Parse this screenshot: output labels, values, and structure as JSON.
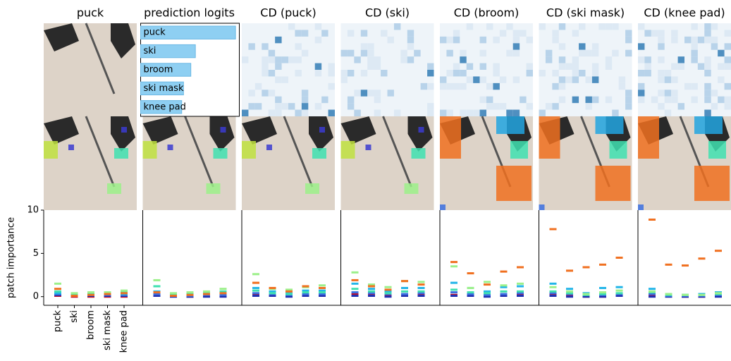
{
  "chart_data": [
    {
      "type": "strip",
      "title": "puck",
      "categories": [
        "puck",
        "ski",
        "broom",
        "ski mask",
        "knee pad"
      ],
      "ylabel": "patch importance",
      "ylim": [
        -1,
        10
      ],
      "yticks": [
        0,
        5,
        10
      ],
      "series": [
        {
          "color": "#c0102a",
          "values": [
            0.1,
            0.0,
            0.0,
            0.0,
            0.0
          ]
        },
        {
          "color": "#1f2fb0",
          "values": [
            0.2,
            0.1,
            0.1,
            0.1,
            0.1
          ]
        },
        {
          "color": "#3b6fe0",
          "values": [
            0.3,
            0.1,
            0.2,
            0.2,
            0.2
          ]
        },
        {
          "color": "#22b5e8",
          "values": [
            0.4,
            0.2,
            0.3,
            0.3,
            0.3
          ]
        },
        {
          "color": "#3fe0b0",
          "values": [
            0.6,
            0.3,
            0.4,
            0.4,
            0.5
          ]
        },
        {
          "color": "#9cf08a",
          "values": [
            1.5,
            0.4,
            0.5,
            0.5,
            0.7
          ]
        },
        {
          "color": "#f07020",
          "values": [
            0.9,
            0.1,
            0.2,
            0.3,
            0.4
          ]
        }
      ]
    },
    {
      "type": "strip",
      "title": "prediction logits",
      "series": [
        {
          "color": "#c0102a",
          "values": [
            0.2,
            0.1,
            0.0,
            0.1,
            0.1
          ]
        },
        {
          "color": "#1f2fb0",
          "values": [
            0.1,
            0.0,
            0.0,
            0.0,
            0.0
          ]
        },
        {
          "color": "#3b6fe0",
          "values": [
            0.3,
            0.1,
            0.1,
            0.2,
            0.2
          ]
        },
        {
          "color": "#22b5e8",
          "values": [
            0.6,
            0.2,
            0.3,
            0.3,
            0.4
          ]
        },
        {
          "color": "#3fe0b0",
          "values": [
            1.2,
            0.3,
            0.4,
            0.5,
            0.6
          ]
        },
        {
          "color": "#9cf08a",
          "values": [
            1.9,
            0.4,
            0.5,
            0.6,
            0.9
          ]
        },
        {
          "color": "#f07020",
          "values": [
            0.5,
            0.1,
            0.2,
            0.3,
            0.4
          ]
        }
      ]
    },
    {
      "type": "strip",
      "title": "CD (puck)",
      "series": [
        {
          "color": "#c0102a",
          "values": [
            0.2,
            0.1,
            0.1,
            0.1,
            0.1
          ]
        },
        {
          "color": "#1f2fb0",
          "values": [
            0.1,
            0.1,
            0.0,
            0.1,
            0.1
          ]
        },
        {
          "color": "#3b6fe0",
          "values": [
            0.4,
            0.3,
            0.2,
            0.3,
            0.3
          ]
        },
        {
          "color": "#22b5e8",
          "values": [
            1.0,
            0.6,
            0.5,
            0.7,
            0.7
          ]
        },
        {
          "color": "#3fe0b0",
          "values": [
            0.7,
            0.4,
            0.3,
            0.5,
            0.5
          ]
        },
        {
          "color": "#9cf08a",
          "values": [
            2.6,
            0.9,
            0.8,
            1.1,
            1.3
          ]
        },
        {
          "color": "#f07020",
          "values": [
            1.6,
            1.0,
            0.6,
            1.2,
            1.0
          ]
        }
      ]
    },
    {
      "type": "strip",
      "title": "CD (ski)",
      "series": [
        {
          "color": "#c0102a",
          "values": [
            0.3,
            0.2,
            0.1,
            0.1,
            0.2
          ]
        },
        {
          "color": "#1f2fb0",
          "values": [
            0.1,
            0.1,
            0.0,
            0.1,
            0.1
          ]
        },
        {
          "color": "#3b6fe0",
          "values": [
            0.5,
            0.4,
            0.3,
            0.3,
            0.4
          ]
        },
        {
          "color": "#22b5e8",
          "values": [
            1.5,
            0.9,
            0.6,
            1.0,
            1.0
          ]
        },
        {
          "color": "#3fe0b0",
          "values": [
            0.9,
            0.6,
            0.4,
            0.6,
            0.6
          ]
        },
        {
          "color": "#9cf08a",
          "values": [
            2.8,
            1.4,
            1.1,
            1.8,
            1.7
          ]
        },
        {
          "color": "#f07020",
          "values": [
            1.9,
            1.2,
            0.8,
            1.8,
            1.4
          ]
        }
      ]
    },
    {
      "type": "strip",
      "title": "CD (broom)",
      "series": [
        {
          "color": "#c0102a",
          "values": [
            0.2,
            0.2,
            0.1,
            0.1,
            0.2
          ]
        },
        {
          "color": "#1f2fb0",
          "values": [
            0.1,
            0.1,
            0.0,
            0.1,
            0.1
          ]
        },
        {
          "color": "#3b6fe0",
          "values": [
            0.5,
            0.3,
            0.2,
            0.3,
            0.4
          ]
        },
        {
          "color": "#22b5e8",
          "values": [
            1.6,
            1.0,
            0.6,
            1.1,
            1.2
          ]
        },
        {
          "color": "#3fe0b0",
          "values": [
            0.8,
            0.5,
            0.4,
            0.6,
            0.6
          ]
        },
        {
          "color": "#9cf08a",
          "values": [
            3.5,
            1.0,
            1.7,
            1.3,
            1.5
          ]
        },
        {
          "color": "#f07020",
          "values": [
            4.0,
            2.7,
            1.4,
            2.9,
            3.4
          ]
        }
      ]
    },
    {
      "type": "strip",
      "title": "CD (ski mask)",
      "series": [
        {
          "color": "#c0102a",
          "values": [
            0.2,
            0.1,
            0.0,
            0.0,
            0.1
          ]
        },
        {
          "color": "#1f2fb0",
          "values": [
            0.1,
            0.0,
            0.0,
            0.0,
            0.1
          ]
        },
        {
          "color": "#3b6fe0",
          "values": [
            0.4,
            0.3,
            0.2,
            0.2,
            0.3
          ]
        },
        {
          "color": "#22b5e8",
          "values": [
            1.5,
            0.9,
            0.4,
            1.0,
            1.1
          ]
        },
        {
          "color": "#3fe0b0",
          "values": [
            0.6,
            0.4,
            0.2,
            0.3,
            0.4
          ]
        },
        {
          "color": "#9cf08a",
          "values": [
            1.1,
            0.6,
            0.3,
            0.5,
            0.7
          ]
        },
        {
          "color": "#f07020",
          "values": [
            7.8,
            3.0,
            3.4,
            3.7,
            4.5
          ]
        }
      ]
    },
    {
      "type": "strip",
      "title": "CD (knee pad)",
      "series": [
        {
          "color": "#c0102a",
          "values": [
            0.2,
            0.1,
            0.0,
            0.0,
            0.1
          ]
        },
        {
          "color": "#1f2fb0",
          "values": [
            0.0,
            0.0,
            0.0,
            0.0,
            0.0
          ]
        },
        {
          "color": "#3b6fe0",
          "values": [
            0.3,
            0.1,
            0.1,
            0.1,
            0.2
          ]
        },
        {
          "color": "#22b5e8",
          "values": [
            0.9,
            0.3,
            0.2,
            0.3,
            0.5
          ]
        },
        {
          "color": "#3fe0b0",
          "values": [
            0.5,
            0.2,
            0.2,
            0.2,
            0.3
          ]
        },
        {
          "color": "#9cf08a",
          "values": [
            0.6,
            0.3,
            0.2,
            0.2,
            0.4
          ]
        },
        {
          "color": "#f07020",
          "values": [
            8.9,
            3.7,
            3.6,
            4.4,
            5.3
          ]
        }
      ]
    },
    {
      "type": "bar",
      "categories": [
        "puck",
        "ski",
        "broom",
        "ski mask",
        "knee pad"
      ],
      "values": [
        10.4,
        6.0,
        5.5,
        4.7,
        4.5
      ],
      "color": "#8ecff2"
    }
  ]
}
